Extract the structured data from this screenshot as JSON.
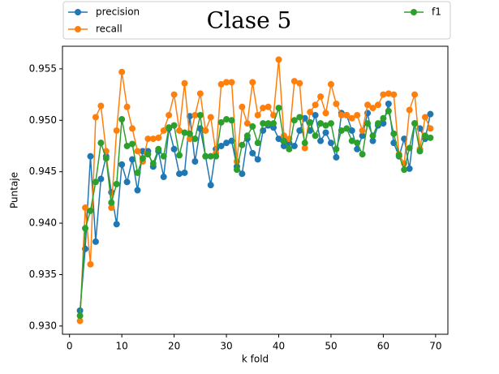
{
  "chart_data": {
    "type": "line",
    "title": "Clase  5",
    "xlabel": "k fold",
    "ylabel": "Puntaje",
    "x": [
      2,
      3,
      4,
      5,
      6,
      7,
      8,
      9,
      10,
      11,
      12,
      13,
      14,
      15,
      16,
      17,
      18,
      19,
      20,
      21,
      22,
      23,
      24,
      25,
      26,
      27,
      28,
      29,
      30,
      31,
      32,
      33,
      34,
      35,
      36,
      37,
      38,
      39,
      40,
      41,
      42,
      43,
      44,
      45,
      46,
      47,
      48,
      49,
      50,
      51,
      52,
      53,
      54,
      55,
      56,
      57,
      58,
      59,
      60,
      61,
      62,
      63,
      64,
      65,
      66,
      67,
      68,
      69
    ],
    "series": [
      {
        "name": "precision",
        "color": "#1f77b4",
        "values": [
          0.9315,
          0.9375,
          0.9465,
          0.9382,
          0.9443,
          0.9465,
          0.943,
          0.9399,
          0.9457,
          0.944,
          0.9462,
          0.9432,
          0.947,
          0.947,
          0.9455,
          0.947,
          0.9445,
          0.9492,
          0.9472,
          0.9448,
          0.9449,
          0.9504,
          0.946,
          0.9492,
          0.9465,
          0.9437,
          0.9472,
          0.9475,
          0.9478,
          0.948,
          0.9455,
          0.9448,
          0.9482,
          0.9468,
          0.9462,
          0.949,
          0.9495,
          0.9493,
          0.9482,
          0.9475,
          0.9478,
          0.9475,
          0.949,
          0.9502,
          0.949,
          0.9505,
          0.948,
          0.9488,
          0.9478,
          0.9464,
          0.9507,
          0.9505,
          0.949,
          0.9472,
          0.9485,
          0.9507,
          0.948,
          0.9495,
          0.9497,
          0.9516,
          0.9478,
          0.9465,
          0.9482,
          0.9453,
          0.9497,
          0.9492,
          0.9482,
          0.9506
        ]
      },
      {
        "name": "recall",
        "color": "#ff7f0e",
        "values": [
          0.9305,
          0.9415,
          0.936,
          0.9503,
          0.9514,
          0.947,
          0.9415,
          0.949,
          0.9547,
          0.9513,
          0.9492,
          0.947,
          0.946,
          0.9482,
          0.9482,
          0.9483,
          0.949,
          0.9505,
          0.9525,
          0.949,
          0.9536,
          0.9482,
          0.9505,
          0.9526,
          0.949,
          0.9503,
          0.9468,
          0.9535,
          0.9537,
          0.9537,
          0.946,
          0.9513,
          0.9497,
          0.9537,
          0.9505,
          0.9512,
          0.9513,
          0.9505,
          0.9559,
          0.9485,
          0.9482,
          0.9538,
          0.9536,
          0.9473,
          0.9508,
          0.9515,
          0.9523,
          0.9507,
          0.9535,
          0.9516,
          0.9505,
          0.9505,
          0.9502,
          0.9505,
          0.949,
          0.9515,
          0.9512,
          0.9515,
          0.9525,
          0.9526,
          0.9525,
          0.9467,
          0.9458,
          0.951,
          0.9525,
          0.9472,
          0.9503,
          0.9492
        ]
      },
      {
        "name": "f1",
        "color": "#2ca02c",
        "values": [
          0.931,
          0.9395,
          0.9412,
          0.944,
          0.9478,
          0.9463,
          0.942,
          0.9438,
          0.9501,
          0.9475,
          0.9477,
          0.9449,
          0.9463,
          0.9467,
          0.9458,
          0.9472,
          0.9465,
          0.9493,
          0.9495,
          0.9466,
          0.9488,
          0.9487,
          0.9482,
          0.9505,
          0.9465,
          0.9465,
          0.9465,
          0.9498,
          0.9501,
          0.95,
          0.9452,
          0.9476,
          0.9485,
          0.9494,
          0.9478,
          0.9497,
          0.9497,
          0.9497,
          0.9512,
          0.948,
          0.9472,
          0.95,
          0.9503,
          0.9478,
          0.9498,
          0.9485,
          0.9497,
          0.9495,
          0.9497,
          0.9472,
          0.949,
          0.9492,
          0.948,
          0.9478,
          0.9467,
          0.9497,
          0.9485,
          0.9497,
          0.9502,
          0.9509,
          0.9487,
          0.9466,
          0.9452,
          0.9473,
          0.9497,
          0.947,
          0.9485,
          0.9483
        ]
      }
    ],
    "xlim": [
      -1.35,
      72.35
    ],
    "xticks": [
      0,
      10,
      20,
      30,
      40,
      50,
      60,
      70
    ],
    "ylim": [
      0.9292,
      0.9572
    ],
    "yticks": [
      {
        "value": 0.93,
        "label": "0.930"
      },
      0.935,
      {
        "value": 0.94,
        "label": "0.940"
      },
      0.945,
      {
        "value": 0.95,
        "label": "0.950"
      },
      0.955
    ],
    "legend": "upper center"
  }
}
